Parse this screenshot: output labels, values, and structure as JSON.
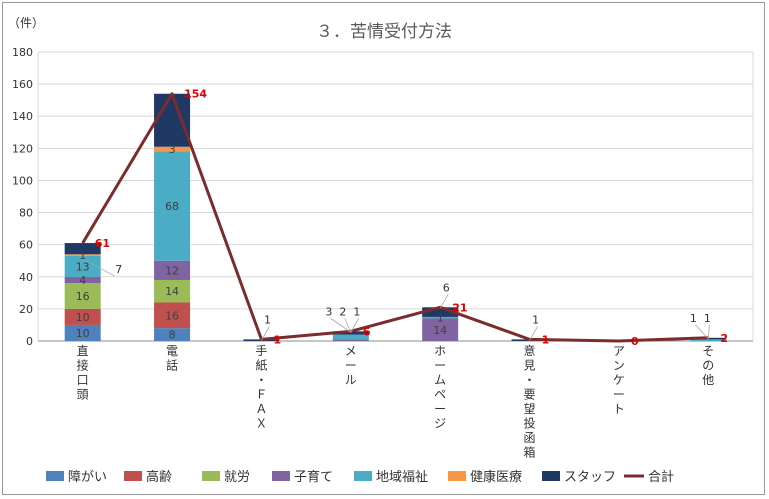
{
  "chart_data": {
    "type": "bar",
    "stacked": true,
    "title": "３．苦情受付方法",
    "ylabel": "（件）",
    "ylim": [
      0,
      180
    ],
    "yticks": [
      0,
      20,
      40,
      60,
      80,
      100,
      120,
      140,
      160,
      180
    ],
    "grid": true,
    "legend_position": "bottom",
    "categories": [
      "直接口頭",
      "電話",
      "手紙・ＦＡＸ",
      "メール",
      "ホームページ",
      "意見・要望投函箱",
      "アンケート",
      "その他"
    ],
    "series": [
      {
        "name": "障がい",
        "color": "#4f81bd",
        "values": [
          10,
          8,
          0,
          0,
          0,
          0,
          0,
          0
        ]
      },
      {
        "name": "高齢",
        "color": "#c0504d",
        "values": [
          10,
          16,
          0,
          0,
          0,
          0,
          0,
          0
        ]
      },
      {
        "name": "就労",
        "color": "#9bbb59",
        "values": [
          16,
          14,
          0,
          0,
          0,
          0,
          0,
          0
        ]
      },
      {
        "name": "子育て",
        "color": "#8064a2",
        "values": [
          4,
          12,
          0,
          1,
          14,
          0,
          0,
          0
        ]
      },
      {
        "name": "地域福祉",
        "color": "#4bacc6",
        "values": [
          13,
          68,
          0,
          3,
          1,
          0,
          0,
          1
        ]
      },
      {
        "name": "健康医療",
        "color": "#f79646",
        "values": [
          1,
          3,
          0,
          0,
          0,
          0,
          0,
          0
        ]
      },
      {
        "name": "スタッフ",
        "color": "#1f3864",
        "values": [
          7,
          33,
          1,
          2,
          6,
          1,
          0,
          1
        ]
      }
    ],
    "total": {
      "name": "合計",
      "color": "#7b2c2c",
      "values": [
        61,
        154,
        1,
        6,
        21,
        1,
        0,
        2
      ]
    },
    "bar_labels": [
      {
        "cat": 0,
        "text": "10"
      },
      {
        "cat": 0,
        "text": "10"
      },
      {
        "cat": 0,
        "text": "16"
      },
      {
        "cat": 0,
        "text": "4"
      },
      {
        "cat": 0,
        "text": "13"
      },
      {
        "cat": 0,
        "text": "1"
      },
      {
        "cat": 1,
        "text": "8"
      },
      {
        "cat": 1,
        "text": "16"
      },
      {
        "cat": 1,
        "text": "14"
      },
      {
        "cat": 1,
        "text": "12"
      },
      {
        "cat": 1,
        "text": "68"
      },
      {
        "cat": 1,
        "text": "3"
      },
      {
        "cat": 4,
        "text": "14"
      },
      {
        "cat": 4,
        "text": "1"
      }
    ],
    "callout_labels": [
      {
        "cat": 0,
        "text": "7"
      },
      {
        "cat": 2,
        "text": "1"
      },
      {
        "cat": 3,
        "text": "3"
      },
      {
        "cat": 3,
        "text": "2"
      },
      {
        "cat": 3,
        "text": "1"
      },
      {
        "cat": 4,
        "text": "6"
      },
      {
        "cat": 5,
        "text": "1"
      },
      {
        "cat": 7,
        "text": "1"
      },
      {
        "cat": 7,
        "text": "1"
      }
    ],
    "total_labels": [
      "61",
      "154",
      "1",
      "6",
      "21",
      "1",
      "0",
      "2"
    ]
  }
}
